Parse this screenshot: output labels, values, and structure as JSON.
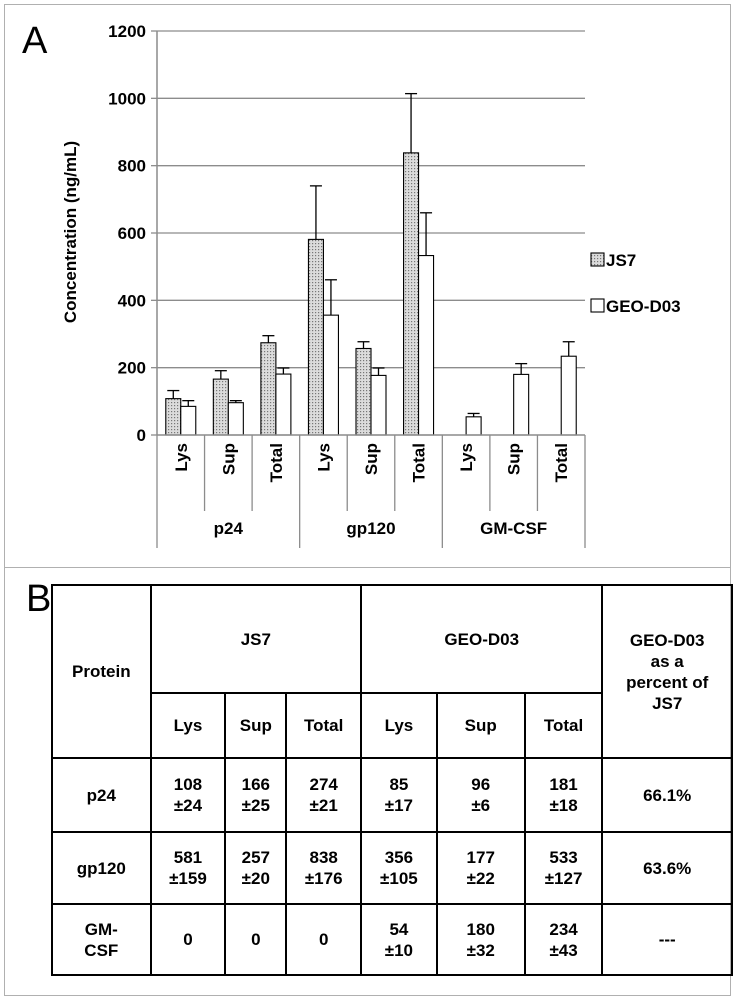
{
  "panel_a_letter": "A",
  "panel_b_letter": "B",
  "chart_data": {
    "type": "bar",
    "ylabel": "Concentration (ng/mL)",
    "ylim": [
      0,
      1200
    ],
    "yticks": [
      0,
      200,
      400,
      600,
      800,
      1000,
      1200
    ],
    "grid": true,
    "legend_position": "right",
    "groups": [
      {
        "label": "p24",
        "categories": [
          "Lys",
          "Sup",
          "Total"
        ]
      },
      {
        "label": "gp120",
        "categories": [
          "Lys",
          "Sup",
          "Total"
        ]
      },
      {
        "label": "GM-CSF",
        "categories": [
          "Lys",
          "Sup",
          "Total"
        ]
      }
    ],
    "series": [
      {
        "name": "JS7",
        "pattern": "dotted",
        "values": [
          108,
          166,
          274,
          581,
          257,
          838,
          0,
          0,
          0
        ],
        "errors": [
          24,
          25,
          21,
          159,
          20,
          176,
          0,
          0,
          0
        ]
      },
      {
        "name": "GEO-D03",
        "pattern": "plain",
        "values": [
          85,
          96,
          181,
          356,
          177,
          533,
          54,
          180,
          234
        ],
        "errors": [
          17,
          6,
          18,
          105,
          22,
          127,
          10,
          32,
          43
        ]
      }
    ]
  },
  "table": {
    "protein_header": "Protein",
    "js7_header": "JS7",
    "geo_header": "GEO-D03",
    "percent_header": [
      "GEO-D03",
      "as a",
      "percent of",
      "JS7"
    ],
    "sub_headers": [
      "Lys",
      "Sup",
      "Total",
      "Lys",
      "Sup",
      "Total"
    ],
    "rows": [
      {
        "protein": [
          "p24"
        ],
        "cells": [
          [
            "108",
            "±24"
          ],
          [
            "166",
            "±25"
          ],
          [
            "274",
            "±21"
          ],
          [
            "85",
            "±17"
          ],
          [
            "96",
            "±6"
          ],
          [
            "181",
            "±18"
          ]
        ],
        "percent": "66.1%"
      },
      {
        "protein": [
          "gp120"
        ],
        "cells": [
          [
            "581",
            "±159"
          ],
          [
            "257",
            "±20"
          ],
          [
            "838",
            "±176"
          ],
          [
            "356",
            "±105"
          ],
          [
            "177",
            "±22"
          ],
          [
            "533",
            "±127"
          ]
        ],
        "percent": "63.6%"
      },
      {
        "protein": [
          "GM-",
          "CSF"
        ],
        "cells": [
          [
            "0"
          ],
          [
            "0"
          ],
          [
            "0"
          ],
          [
            "54",
            "±10"
          ],
          [
            "180",
            "±32"
          ],
          [
            "234",
            "±43"
          ]
        ],
        "percent": "---"
      }
    ]
  }
}
